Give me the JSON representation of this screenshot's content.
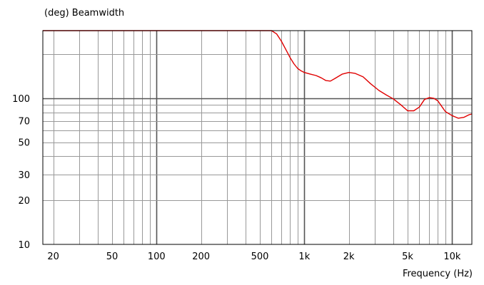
{
  "chart_data": {
    "type": "line",
    "ylabel": "(deg)  Beamwidth",
    "xlabel": "Frequency  (Hz)",
    "x_scale": "log",
    "y_scale": "log",
    "xlim": [
      17,
      13600
    ],
    "ylim": [
      10,
      290
    ],
    "grid": true,
    "x_ticks": [
      {
        "value": 20,
        "label": "20"
      },
      {
        "value": 50,
        "label": "50"
      },
      {
        "value": 100,
        "label": "100"
      },
      {
        "value": 200,
        "label": "200"
      },
      {
        "value": 500,
        "label": "500"
      },
      {
        "value": 1000,
        "label": "1k"
      },
      {
        "value": 2000,
        "label": "2k"
      },
      {
        "value": 5000,
        "label": "5k"
      },
      {
        "value": 10000,
        "label": "10k"
      }
    ],
    "y_ticks": [
      {
        "value": 10,
        "label": "10"
      },
      {
        "value": 20,
        "label": "20"
      },
      {
        "value": 30,
        "label": "30"
      },
      {
        "value": 50,
        "label": "50"
      },
      {
        "value": 70,
        "label": "70"
      },
      {
        "value": 100,
        "label": "100"
      }
    ],
    "series": [
      {
        "color": "#e00000",
        "x": [
          17,
          100,
          500,
          600,
          650,
          700,
          750,
          800,
          850,
          900,
          950,
          1000,
          1100,
          1200,
          1300,
          1400,
          1500,
          1600,
          1800,
          2000,
          2200,
          2500,
          2800,
          3200,
          3600,
          4000,
          4500,
          5000,
          5500,
          6000,
          6500,
          7000,
          7500,
          8000,
          8500,
          9000,
          10000,
          11000,
          12000,
          13000,
          13600
        ],
        "y": [
          290,
          290,
          290,
          290,
          275,
          245,
          215,
          190,
          172,
          160,
          154,
          150,
          146,
          143,
          138,
          132,
          131,
          136,
          146,
          150,
          148,
          140,
          126,
          113,
          105,
          99,
          90,
          82,
          82,
          87,
          98,
          101,
          100,
          96,
          88,
          81,
          76,
          73,
          74,
          77,
          78
        ]
      }
    ]
  }
}
